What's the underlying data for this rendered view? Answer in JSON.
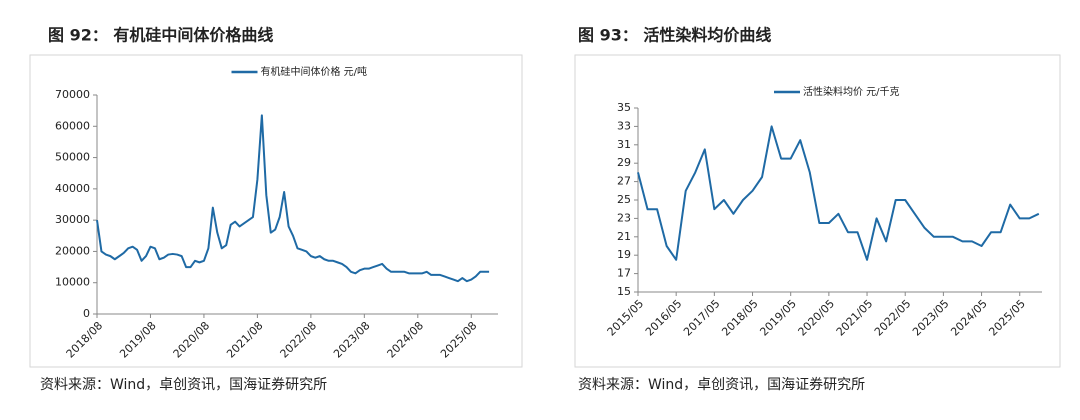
{
  "chart_data": [
    {
      "type": "line",
      "title": "图 92：  有机硅中间体价格曲线",
      "source": "资料来源：Wind，卓创资讯，国海证券研究所",
      "x": [
        "2018/08",
        "2018/09",
        "2018/10",
        "2018/11",
        "2018/12",
        "2019/01",
        "2019/02",
        "2019/03",
        "2019/04",
        "2019/05",
        "2019/06",
        "2019/07",
        "2019/08",
        "2019/09",
        "2019/10",
        "2019/11",
        "2019/12",
        "2020/01",
        "2020/02",
        "2020/03",
        "2020/04",
        "2020/05",
        "2020/06",
        "2020/07",
        "2020/08",
        "2020/09",
        "2020/10",
        "2020/11",
        "2020/12",
        "2021/01",
        "2021/02",
        "2021/03",
        "2021/04",
        "2021/05",
        "2021/06",
        "2021/07",
        "2021/08",
        "2021/09",
        "2021/10",
        "2021/11",
        "2021/12",
        "2022/01",
        "2022/02",
        "2022/03",
        "2022/04",
        "2022/05",
        "2022/06",
        "2022/07",
        "2022/08",
        "2022/09",
        "2022/10",
        "2022/11",
        "2022/12",
        "2023/01",
        "2023/02",
        "2023/03",
        "2023/04",
        "2023/05",
        "2023/06",
        "2023/07",
        "2023/08",
        "2023/09",
        "2023/10",
        "2023/11",
        "2023/12",
        "2024/01",
        "2024/02",
        "2024/03",
        "2024/04",
        "2024/05",
        "2024/06",
        "2024/07",
        "2024/08",
        "2024/09",
        "2024/10",
        "2024/11",
        "2024/12",
        "2025/01",
        "2025/02",
        "2025/03",
        "2025/04",
        "2025/05",
        "2025/06",
        "2025/07",
        "2025/08",
        "2025/09",
        "2025/10",
        "2025/11",
        "2025/12"
      ],
      "series": [
        {
          "name": "有机硅中间体价格  元/吨",
          "color": "#1f6aa5",
          "values": [
            30000,
            20000,
            19000,
            18500,
            17500,
            18500,
            19500,
            21000,
            21500,
            20500,
            17000,
            18500,
            21500,
            21000,
            17500,
            18000,
            19000,
            19200,
            19000,
            18500,
            15000,
            15000,
            17000,
            16500,
            17000,
            21000,
            34000,
            26000,
            21000,
            22000,
            28500,
            29500,
            28000,
            29000,
            30000,
            31000,
            43000,
            63500,
            38000,
            26000,
            27000,
            31000,
            39000,
            28000,
            25000,
            21000,
            20500,
            20000,
            18500,
            18000,
            18500,
            17500,
            17000,
            17000,
            16500,
            16000,
            15000,
            13500,
            13000,
            14000,
            14500,
            14500,
            15000,
            15500,
            16000,
            14500,
            13500,
            13500,
            13500,
            13500,
            13000,
            13000,
            13000,
            13000,
            13500,
            12500,
            12500,
            12500,
            12000,
            11500,
            11000,
            10500,
            11500,
            10500,
            11000,
            12000,
            13500,
            13500,
            13500
          ]
        }
      ],
      "xlim": [
        "2018/08",
        "2026/02"
      ],
      "xticks": [
        "2018/08",
        "2019/08",
        "2020/08",
        "2021/08",
        "2022/08",
        "2023/08",
        "2024/08",
        "2025/08"
      ],
      "ylim": [
        0,
        70000
      ],
      "yticks": [
        0,
        10000,
        20000,
        30000,
        40000,
        50000,
        60000,
        70000
      ],
      "grid": false,
      "legend": "top"
    },
    {
      "type": "line",
      "title": "图 93：  活性染料均价曲线",
      "source": "资料来源：Wind，卓创资讯，国海证券研究所",
      "x": [
        "2015/05",
        "2015/08",
        "2015/11",
        "2016/02",
        "2016/05",
        "2016/08",
        "2016/11",
        "2017/02",
        "2017/05",
        "2017/08",
        "2017/11",
        "2018/02",
        "2018/05",
        "2018/08",
        "2018/11",
        "2019/02",
        "2019/05",
        "2019/08",
        "2019/11",
        "2020/02",
        "2020/05",
        "2020/08",
        "2020/11",
        "2021/02",
        "2021/05",
        "2021/08",
        "2021/11",
        "2022/02",
        "2022/05",
        "2022/08",
        "2022/11",
        "2023/02",
        "2023/05",
        "2023/08",
        "2023/11",
        "2024/02",
        "2024/05",
        "2024/08",
        "2024/11",
        "2025/02",
        "2025/05",
        "2025/08",
        "2025/11"
      ],
      "series": [
        {
          "name": "活性染料均价  元/千克",
          "color": "#1f6aa5",
          "values": [
            28,
            24,
            24,
            20,
            18.5,
            26,
            28,
            30.5,
            24,
            25,
            23.5,
            25,
            26,
            27.5,
            33,
            29.5,
            29.5,
            31.5,
            28,
            22.5,
            22.5,
            23.5,
            21.5,
            21.5,
            18.5,
            23,
            20.5,
            25,
            25,
            23.5,
            22,
            21,
            21,
            21,
            20.5,
            20.5,
            20,
            21.5,
            21.5,
            24.5,
            23,
            23,
            23.5
          ]
        }
      ],
      "xlim": [
        "2015/05",
        "2025/12"
      ],
      "xticks": [
        "2015/05",
        "2016/05",
        "2017/05",
        "2018/05",
        "2019/05",
        "2020/05",
        "2021/05",
        "2022/05",
        "2023/05",
        "2024/05",
        "2025/05"
      ],
      "ylim": [
        15,
        35
      ],
      "yticks": [
        15,
        17,
        19,
        21,
        23,
        25,
        27,
        29,
        31,
        33,
        35
      ],
      "grid": false,
      "legend": "top"
    }
  ]
}
